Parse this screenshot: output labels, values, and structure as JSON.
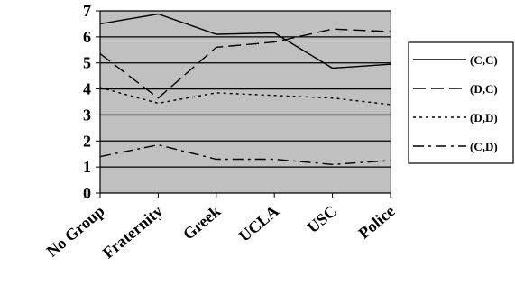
{
  "chart_data": {
    "type": "line",
    "categories": [
      "No Group",
      "Fraternity",
      "Greek",
      "UCLA",
      "USC",
      "Police"
    ],
    "ylim": [
      0,
      7
    ],
    "yticks": [
      "0",
      "1",
      "2",
      "3",
      "4",
      "5",
      "6",
      "7"
    ],
    "grid": true,
    "legend_position": "right",
    "plot_background": "#c0c0c0",
    "series": [
      {
        "name": "(C,C)",
        "dash": "solid",
        "values": [
          6.5,
          6.88,
          6.1,
          6.15,
          4.8,
          4.95
        ]
      },
      {
        "name": "(D,C)",
        "dash": "dashed",
        "values": [
          5.35,
          3.65,
          5.6,
          5.8,
          6.3,
          6.2
        ]
      },
      {
        "name": "(D,D)",
        "dash": "dotted",
        "values": [
          4.05,
          3.45,
          3.85,
          3.75,
          3.65,
          3.4
        ]
      },
      {
        "name": "(C,D)",
        "dash": "dash-dot",
        "values": [
          1.4,
          1.85,
          1.3,
          1.3,
          1.1,
          1.25
        ]
      }
    ]
  }
}
